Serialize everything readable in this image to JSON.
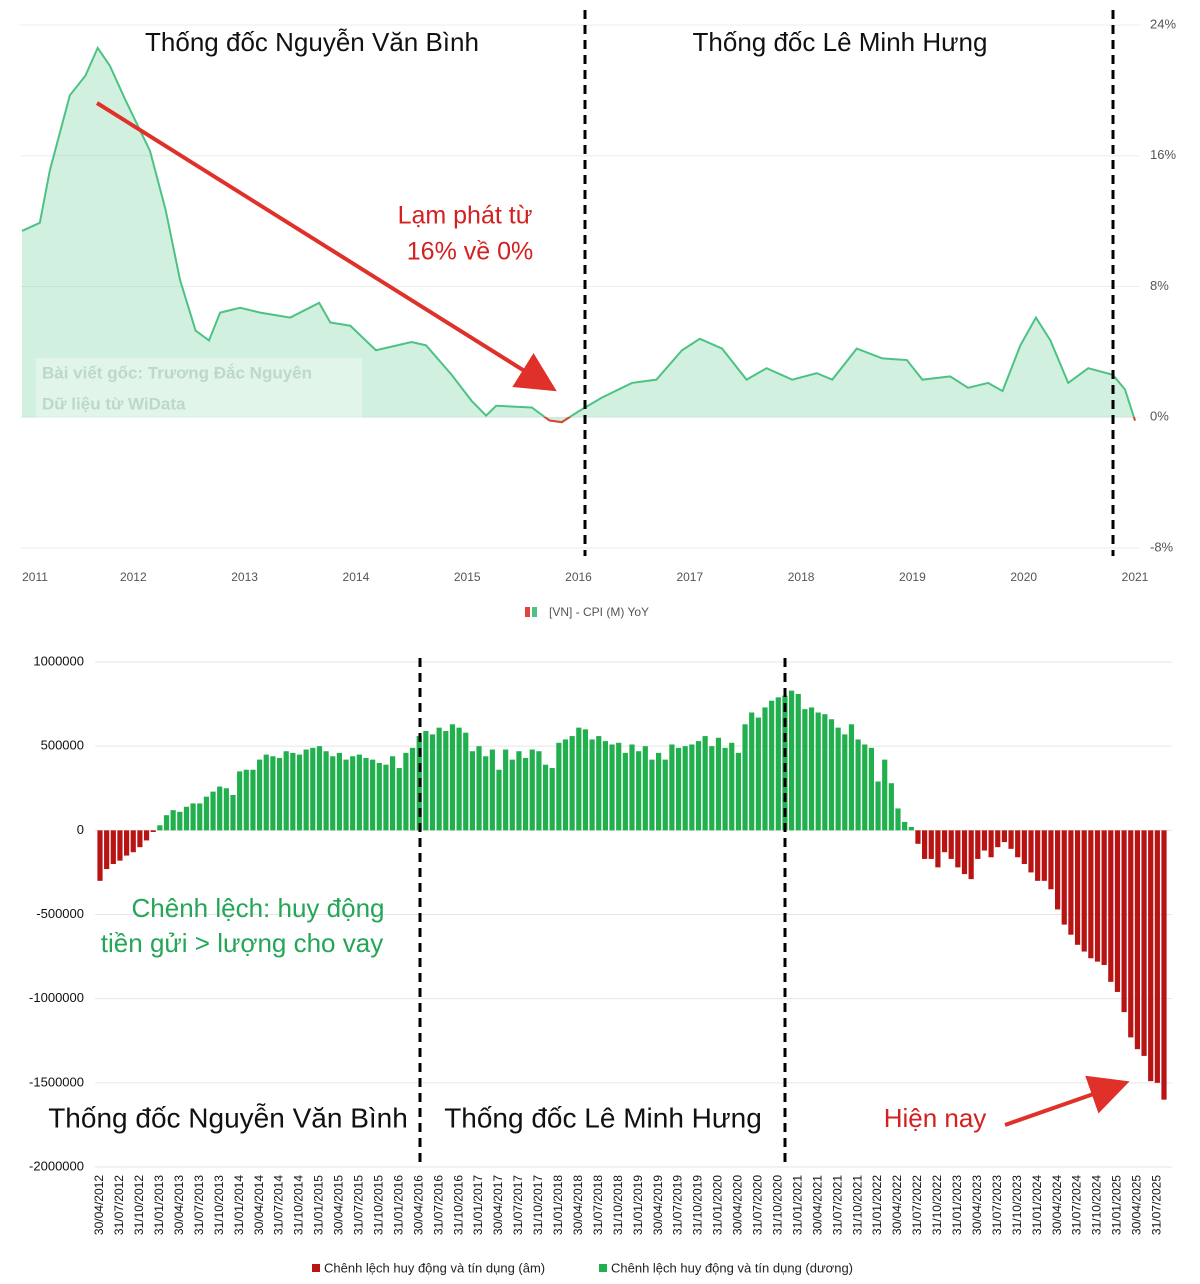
{
  "chart_data": [
    {
      "type": "area",
      "annotations": [
        "Thống đốc Nguyễn Văn Bình",
        "Thống đốc Lê Minh Hưng",
        "Lạm phát từ",
        "16% về 0%"
      ],
      "watermark": [
        "Bài viết gốc: Trương Đắc Nguyên",
        "Dữ liệu từ WiData"
      ],
      "x": [
        2011.0,
        2011.16,
        2011.25,
        2011.43,
        2011.57,
        2011.68,
        2011.79,
        2011.93,
        2012.15,
        2012.29,
        2012.42,
        2012.56,
        2012.68,
        2012.78,
        2012.96,
        2013.14,
        2013.41,
        2013.67,
        2013.77,
        2013.95,
        2014.18,
        2014.5,
        2014.63,
        2014.86,
        2015.04,
        2015.17,
        2015.26,
        2015.58,
        2015.74,
        2015.85,
        2016.01,
        2016.21,
        2016.48,
        2016.7,
        2016.93,
        2017.09,
        2017.29,
        2017.51,
        2017.69,
        2017.92,
        2018.14,
        2018.28,
        2018.5,
        2018.73,
        2018.95,
        2019.09,
        2019.34,
        2019.5,
        2019.68,
        2019.81,
        2019.97,
        2020.11,
        2020.24,
        2020.4,
        2020.58,
        2020.8,
        2020.91,
        2021.0
      ],
      "series": [
        {
          "name": "[VN] - CPI (M) YoY",
          "color": "#4cc283",
          "negative_color": "#e0453a",
          "values": [
            11.4,
            11.9,
            15.1,
            19.7,
            20.9,
            22.6,
            21.5,
            19.4,
            16.3,
            12.7,
            8.4,
            5.3,
            4.7,
            6.4,
            6.7,
            6.4,
            6.1,
            7.0,
            5.8,
            5.6,
            4.1,
            4.6,
            4.4,
            2.6,
            1.0,
            0.1,
            0.7,
            0.6,
            -0.2,
            -0.3,
            0.4,
            1.2,
            2.1,
            2.3,
            4.1,
            4.8,
            4.2,
            2.3,
            3.0,
            2.3,
            2.7,
            2.3,
            4.2,
            3.6,
            3.5,
            2.3,
            2.5,
            1.8,
            2.1,
            1.6,
            4.4,
            6.1,
            4.7,
            2.1,
            3.0,
            2.6,
            1.7,
            -0.2
          ]
        }
      ],
      "xlim": [
        2011,
        2021
      ],
      "xticks": [
        2011,
        2012,
        2013,
        2014,
        2015,
        2016,
        2017,
        2018,
        2019,
        2020,
        2021
      ],
      "ylim": [
        -8,
        24
      ],
      "yticks": [
        {
          "value": 24,
          "label": "24%"
        },
        {
          "value": 16,
          "label": "16%"
        },
        {
          "value": 8,
          "label": "8%"
        },
        {
          "value": 0,
          "label": "0%"
        },
        {
          "value": -8,
          "label": "-8%"
        }
      ],
      "grid": true
    },
    {
      "type": "bar",
      "annotations": [
        "Chênh lệch: huy động",
        "tiền gửi > lượng cho vay",
        "Thống đốc Nguyễn Văn Bình",
        "Thống đốc Lê Minh Hưng",
        "Hiện nay"
      ],
      "categories": [
        "30/04/2012",
        null,
        null,
        "31/07/2012",
        null,
        null,
        "31/10/2012",
        null,
        null,
        "31/01/2013",
        null,
        null,
        "30/04/2013",
        null,
        null,
        "31/07/2013",
        null,
        null,
        "31/10/2013",
        null,
        null,
        "31/01/2014",
        null,
        null,
        "30/04/2014",
        null,
        null,
        "31/07/2014",
        null,
        null,
        "31/10/2014",
        null,
        null,
        "31/01/2015",
        null,
        null,
        "30/04/2015",
        null,
        null,
        "31/07/2015",
        null,
        null,
        "31/10/2015",
        null,
        null,
        "31/01/2016",
        null,
        null,
        "30/04/2016",
        null,
        null,
        "31/07/2016",
        null,
        null,
        "31/10/2016",
        null,
        null,
        "31/01/2017",
        null,
        null,
        "30/04/2017",
        null,
        null,
        "31/07/2017",
        null,
        null,
        "31/10/2017",
        null,
        null,
        "31/01/2018",
        null,
        null,
        "30/04/2018",
        null,
        null,
        "31/07/2018",
        null,
        null,
        "31/10/2018",
        null,
        null,
        "31/01/2019",
        null,
        null,
        "30/04/2019",
        null,
        null,
        "31/07/2019",
        null,
        null,
        "31/10/2019",
        null,
        null,
        "31/01/2020",
        null,
        null,
        "30/04/2020",
        null,
        null,
        "31/07/2020",
        null,
        null,
        "31/10/2020",
        null,
        null,
        "31/01/2021",
        null,
        null,
        "30/04/2021",
        null,
        null,
        "31/07/2021",
        null,
        null,
        "31/10/2021",
        null,
        null,
        "31/01/2022",
        null,
        null,
        "30/04/2022",
        null,
        null,
        "31/07/2022",
        null,
        null,
        "31/10/2022",
        null,
        null,
        "31/01/2023",
        null,
        null,
        "30/04/2023",
        null,
        null,
        "31/07/2023",
        null,
        null,
        "31/10/2023",
        null,
        null,
        "31/01/2024",
        null,
        null,
        "30/04/2024",
        null,
        null,
        "31/07/2024",
        null,
        null,
        "31/10/2024",
        null,
        null,
        "31/01/2025",
        null,
        null,
        "30/04/2025",
        null,
        null,
        "31/07/2025",
        null
      ],
      "values": [
        -300000,
        -230000,
        -200000,
        -180000,
        -150000,
        -130000,
        -100000,
        -60000,
        -10000,
        30000,
        90000,
        120000,
        110000,
        140000,
        160000,
        160000,
        200000,
        230000,
        260000,
        250000,
        210000,
        350000,
        360000,
        360000,
        420000,
        450000,
        440000,
        430000,
        470000,
        460000,
        450000,
        480000,
        490000,
        500000,
        470000,
        440000,
        460000,
        420000,
        440000,
        450000,
        430000,
        420000,
        400000,
        390000,
        440000,
        370000,
        460000,
        490000,
        560000,
        590000,
        570000,
        610000,
        590000,
        630000,
        610000,
        580000,
        470000,
        500000,
        440000,
        480000,
        360000,
        480000,
        420000,
        470000,
        430000,
        480000,
        470000,
        390000,
        370000,
        520000,
        540000,
        560000,
        610000,
        600000,
        540000,
        560000,
        530000,
        510000,
        520000,
        460000,
        510000,
        470000,
        500000,
        420000,
        460000,
        420000,
        510000,
        490000,
        500000,
        510000,
        530000,
        560000,
        500000,
        550000,
        490000,
        520000,
        460000,
        630000,
        700000,
        670000,
        730000,
        770000,
        790000,
        800000,
        830000,
        810000,
        720000,
        730000,
        700000,
        690000,
        660000,
        610000,
        570000,
        630000,
        540000,
        510000,
        490000,
        290000,
        420000,
        280000,
        130000,
        50000,
        20000,
        -80000,
        -170000,
        -170000,
        -220000,
        -130000,
        -170000,
        -220000,
        -260000,
        -290000,
        -170000,
        -120000,
        -160000,
        -100000,
        -70000,
        -110000,
        -160000,
        -200000,
        -250000,
        -300000,
        -300000,
        -350000,
        -470000,
        -560000,
        -620000,
        -680000,
        -720000,
        -760000,
        -780000,
        -800000,
        -900000,
        -960000,
        -1080000,
        -1230000,
        -1300000,
        -1340000,
        -1490000,
        -1500000,
        -1600000
      ],
      "legend": [
        {
          "name": "Chênh lệch huy động và tín dụng (âm)",
          "color": "#b81414"
        },
        {
          "name": "Chênh lệch huy động và tín dụng (dương)",
          "color": "#22b04f"
        }
      ],
      "ylim": [
        -2000000,
        1000000
      ],
      "yticks": [
        1000000,
        500000,
        0,
        -500000,
        -1000000,
        -1500000,
        -2000000
      ],
      "grid": true
    }
  ]
}
